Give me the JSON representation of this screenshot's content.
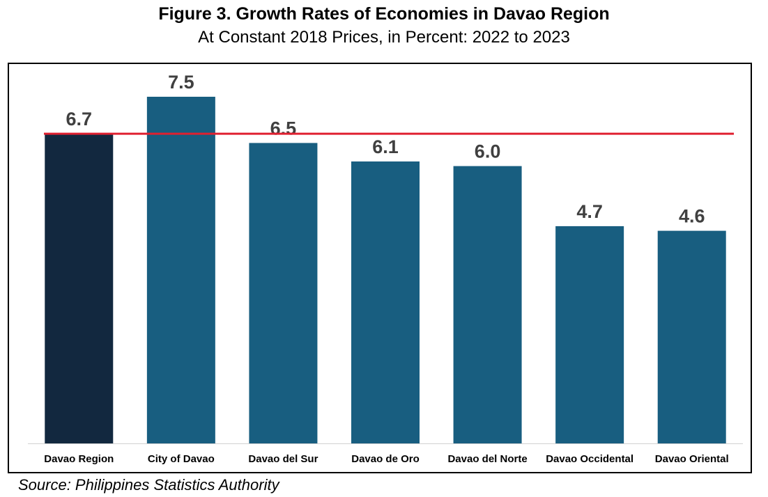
{
  "chart_data": {
    "type": "bar",
    "title": "Figure 3. Growth Rates of Economies in Davao Region",
    "subtitle": "At Constant 2018 Prices, in Percent: 2022 to 2023",
    "categories": [
      "Davao Region",
      "City of Davao",
      "Davao del Sur",
      "Davao de Oro",
      "Davao del Norte",
      "Davao Occidental",
      "Davao Oriental"
    ],
    "values": [
      6.7,
      7.5,
      6.5,
      6.1,
      6.0,
      4.7,
      4.6
    ],
    "value_labels": [
      "6.7",
      "7.5",
      "6.5",
      "6.1",
      "6.0",
      "4.7",
      "4.6"
    ],
    "reference_line": 6.7,
    "ylim": [
      0,
      7.5
    ],
    "grid": false,
    "legend": "none",
    "colors": {
      "highlight_bar": "#12283f",
      "bar": "#185e80",
      "reference_line": "#e02030",
      "value_label": "#404040"
    }
  },
  "source": "Source: Philippines Statistics Authority"
}
